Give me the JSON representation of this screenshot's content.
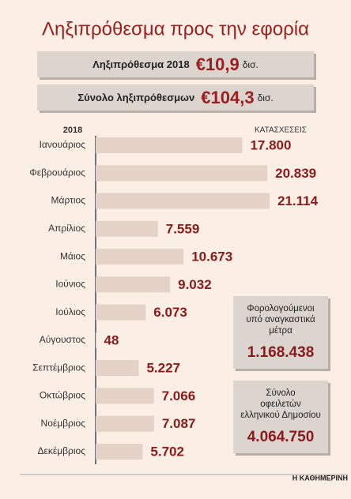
{
  "chart_data": {
    "type": "bar",
    "title": "Ληξιπρόθεσμα προς την εφορία",
    "summary_boxes": [
      {
        "label": "Ληξιπρόθεσμα 2018",
        "value": "€10,9",
        "unit": "δισ."
      },
      {
        "label": "Σύνολο ληξιπρόθεσμων",
        "value": "€104,3",
        "unit": "δισ."
      }
    ],
    "category_header": "2018",
    "value_header": "ΚΑΤΑΣΧΕΣΕΙΣ",
    "categories": [
      "Ιανουάριος",
      "Φεβρουάριος",
      "Μάρτιος",
      "Απρίλιος",
      "Μάιος",
      "Ιούνιος",
      "Ιούλιος",
      "Αύγουστος",
      "Σεπτέμβριος",
      "Οκτώβριος",
      "Νοέμβριος",
      "Δεκέμβριος"
    ],
    "values": [
      17800,
      20839,
      21114,
      7559,
      10673,
      9032,
      6073,
      48,
      5227,
      7066,
      7087,
      5702
    ],
    "value_labels": [
      "17.800",
      "20.839",
      "21.114",
      "7.559",
      "10.673",
      "9.032",
      "6.073",
      "48",
      "5.227",
      "7.066",
      "7.087",
      "5.702"
    ],
    "color": "#e4d2c7",
    "side_boxes": [
      {
        "lines": [
          "Φορολογούμενοι",
          "υπό αναγκαστικά",
          "μέτρα"
        ],
        "value": "1.168.438"
      },
      {
        "lines": [
          "Σύνολο",
          "οφειλετών",
          "ελληνικού Δημοσίου"
        ],
        "value": "4.064.750"
      }
    ],
    "source": "Η ΚΑΘΗΜΕΡΙΝΗ"
  }
}
